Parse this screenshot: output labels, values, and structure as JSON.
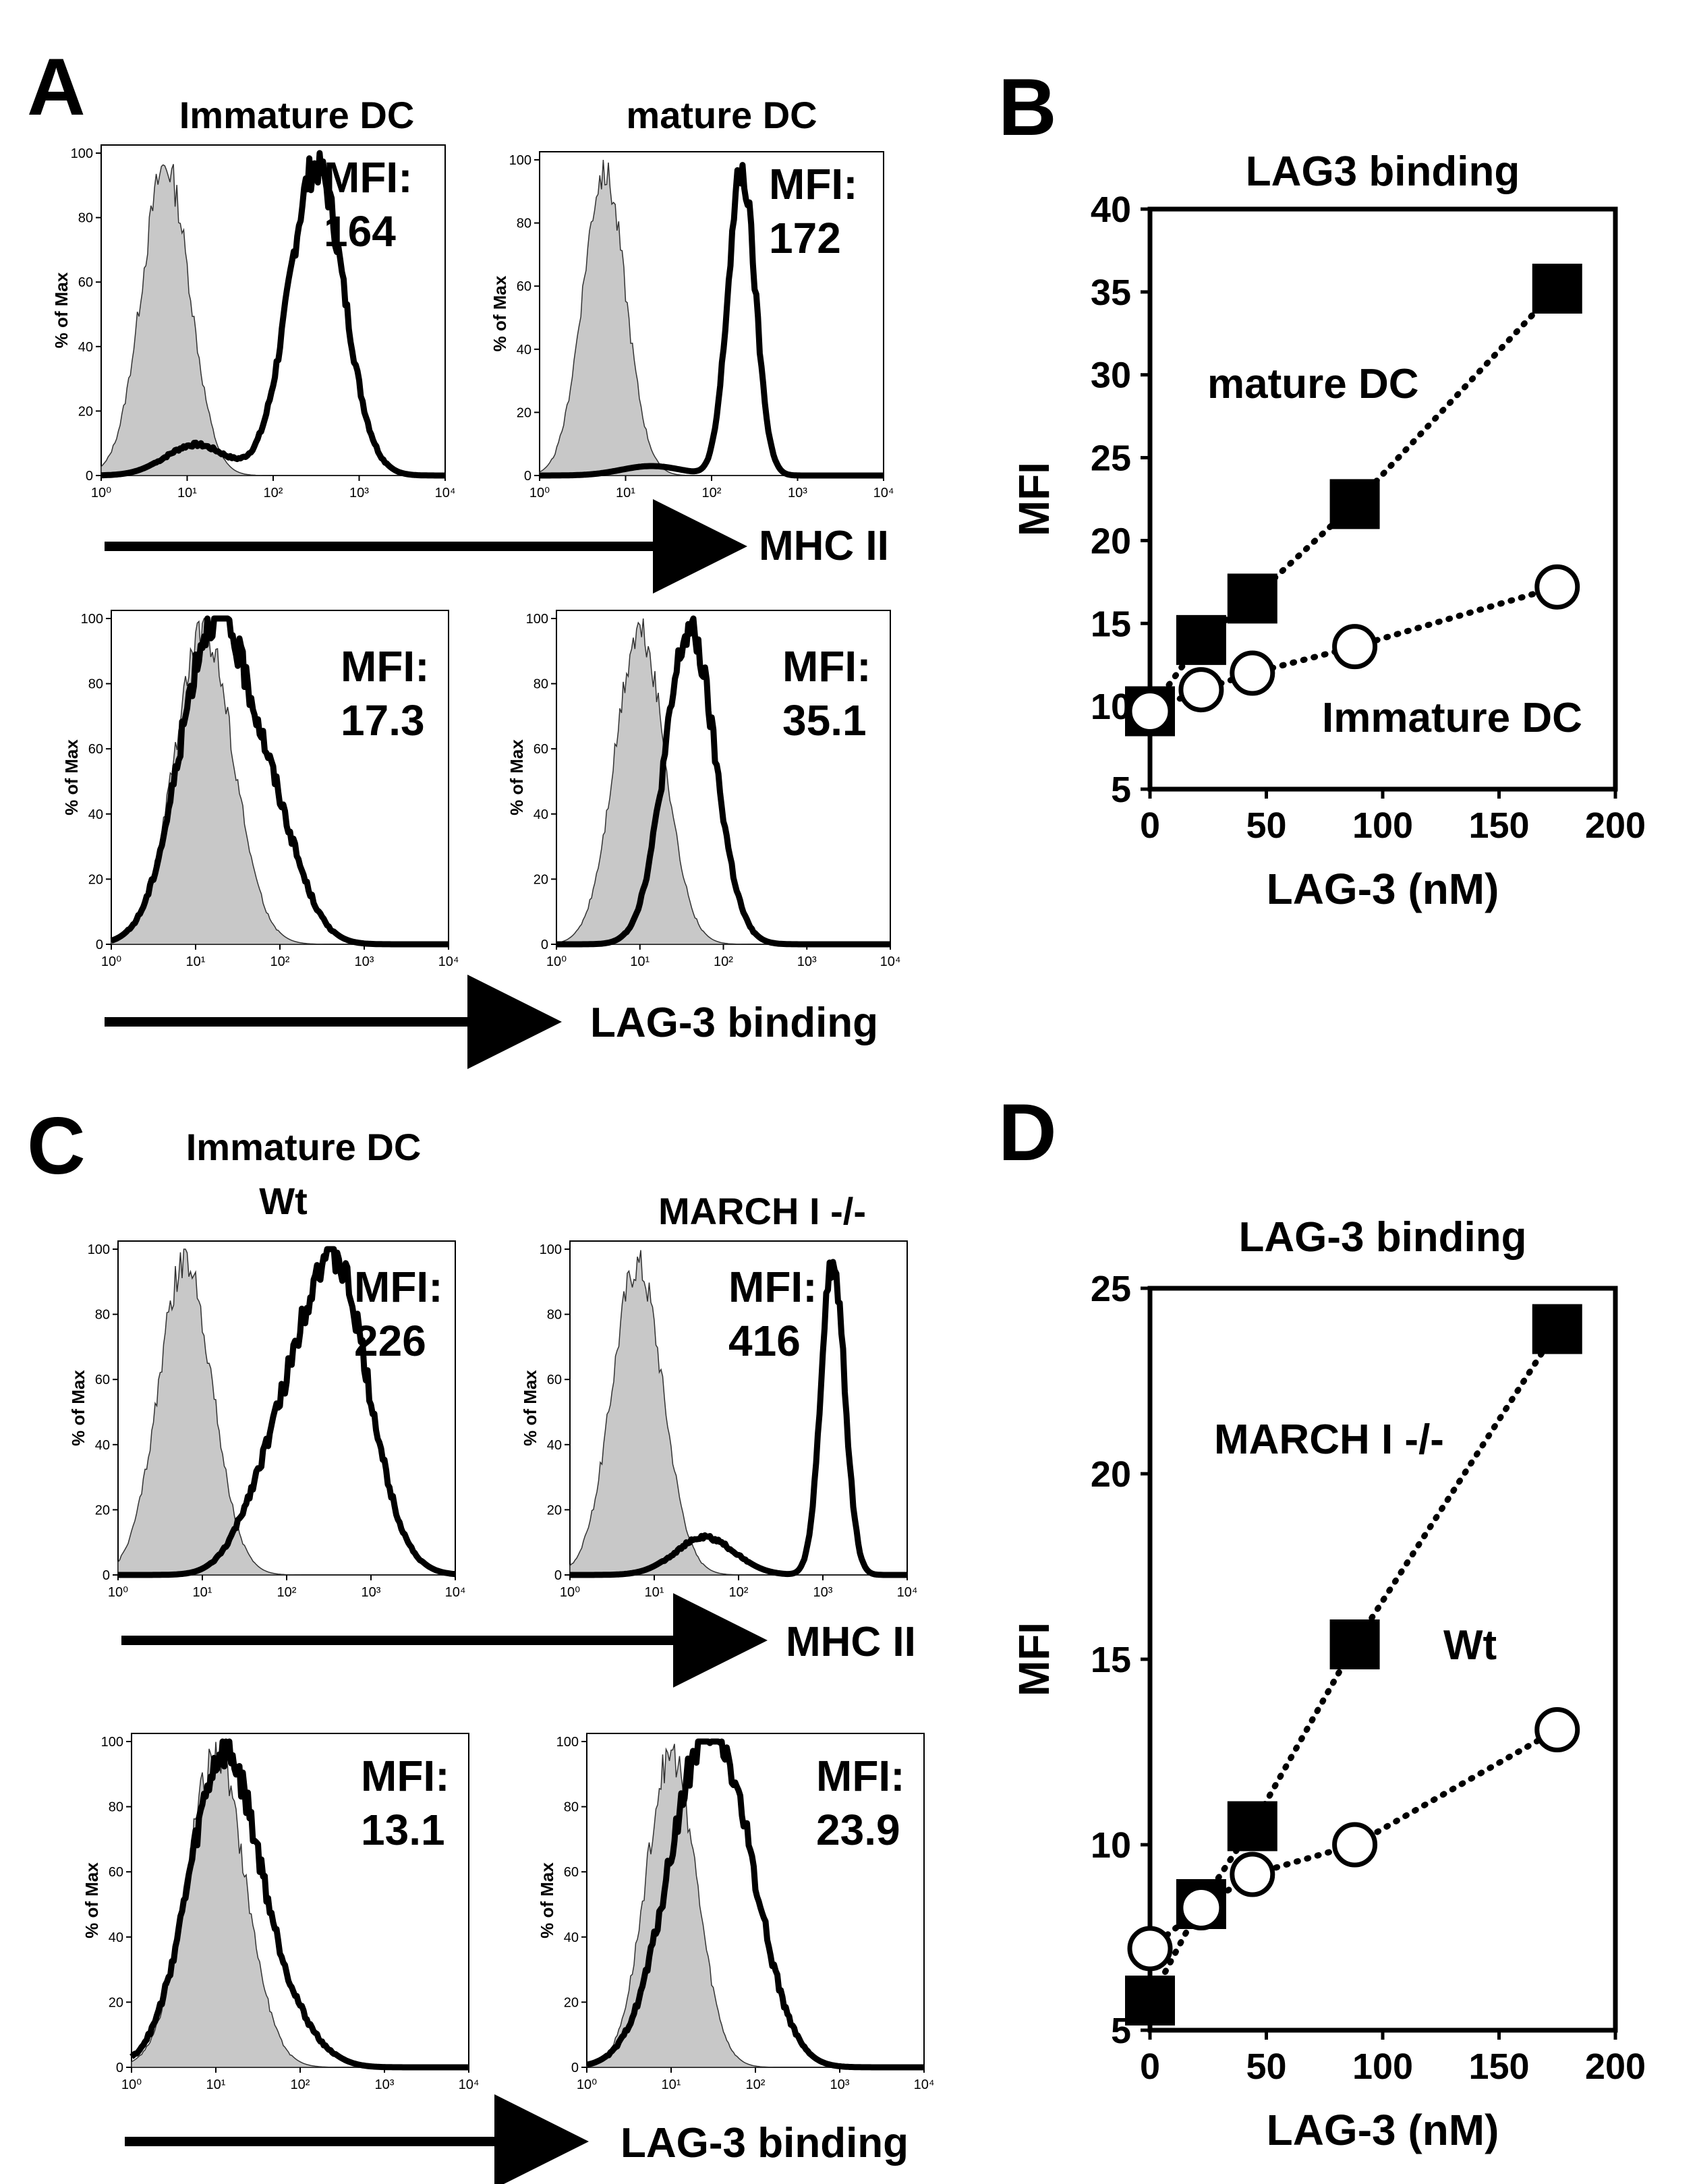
{
  "panels": {
    "A": {
      "letter": "A",
      "col1_title": "Immature DC",
      "col2_title": "mature DC",
      "mhc_axis": "MHC II",
      "lag_axis": "LAG-3 binding"
    },
    "B": {
      "letter": "B"
    },
    "C": {
      "letter": "C",
      "title_line1": "Immature DC",
      "col1_title": "Wt",
      "col2_title": "MARCH I -/-",
      "mhc_axis": "MHC II",
      "lag_axis": "LAG-3 binding"
    },
    "D": {
      "letter": "D"
    }
  },
  "histogram_common": {
    "ylabel": "% of Max",
    "y_ticks": [
      "0",
      "20",
      "40",
      "60",
      "80",
      "100"
    ],
    "x_ticks": [
      "10⁰",
      "10¹",
      "10²",
      "10³",
      "10⁴"
    ],
    "fill_color": "#c8c8c8",
    "line_color": "#000000"
  },
  "histograms": [
    {
      "id": "A-mhc-immature",
      "mfi_label": "MFI:",
      "mfi_value": "164",
      "isotype_peak_log": 0.75,
      "isotype_width": 0.28,
      "stain_peak_log": 2.5,
      "stain_width": 0.32,
      "stain_shoulder_log": 1.1,
      "stain_shoulder_height": 10
    },
    {
      "id": "A-mhc-mature",
      "mfi_label": "MFI:",
      "mfi_value": "172",
      "isotype_peak_log": 0.75,
      "isotype_width": 0.25,
      "stain_peak_log": 2.35,
      "stain_width": 0.16,
      "stain_shoulder_log": 1.3,
      "stain_shoulder_height": 3
    },
    {
      "id": "A-lag-immature",
      "mfi_label": "MFI:",
      "mfi_value": "17.3",
      "isotype_peak_log": 1.1,
      "isotype_width": 0.35,
      "stain_peak_log": 1.2,
      "stain_width": 0.4,
      "stain_shoulder_log": 1.9,
      "stain_shoulder_height": 35
    },
    {
      "id": "A-lag-mature",
      "mfi_label": "MFI:",
      "mfi_value": "35.1",
      "isotype_peak_log": 1.0,
      "isotype_width": 0.3,
      "stain_peak_log": 1.6,
      "stain_width": 0.3,
      "stain_shoulder_log": 1.6,
      "stain_shoulder_height": 0
    },
    {
      "id": "C-mhc-wt",
      "mfi_label": "MFI:",
      "mfi_value": "226",
      "isotype_peak_log": 0.8,
      "isotype_width": 0.32,
      "stain_peak_log": 2.55,
      "stain_width": 0.42,
      "stain_shoulder_log": 1.8,
      "stain_shoulder_height": 25
    },
    {
      "id": "C-mhc-march",
      "mfi_label": "MFI:",
      "mfi_value": "416",
      "isotype_peak_log": 0.8,
      "isotype_width": 0.3,
      "stain_peak_log": 3.12,
      "stain_width": 0.14,
      "stain_shoulder_log": 1.6,
      "stain_shoulder_height": 12
    },
    {
      "id": "C-lag-wt",
      "mfi_label": "MFI:",
      "mfi_value": "13.1",
      "isotype_peak_log": 1.0,
      "isotype_width": 0.35,
      "stain_peak_log": 1.1,
      "stain_width": 0.42,
      "stain_shoulder_log": 1.9,
      "stain_shoulder_height": 10
    },
    {
      "id": "C-lag-march",
      "mfi_label": "MFI:",
      "mfi_value": "23.9",
      "isotype_peak_log": 1.0,
      "isotype_width": 0.3,
      "stain_peak_log": 1.4,
      "stain_width": 0.45,
      "stain_shoulder_log": 1.9,
      "stain_shoulder_height": 20
    }
  ],
  "chart_data": [
    {
      "id": "B",
      "type": "scatter",
      "title": "LAG3 binding",
      "xlabel": "LAG-3 (nM)",
      "ylabel": "MFI",
      "xlim": [
        0,
        200
      ],
      "ylim": [
        5,
        40
      ],
      "x_ticks": [
        0,
        50,
        100,
        150,
        200
      ],
      "y_ticks": [
        5,
        10,
        15,
        20,
        25,
        30,
        35,
        40
      ],
      "series": [
        {
          "name": "mature DC",
          "marker": "filled-square",
          "x": [
            0,
            22,
            44,
            88,
            175
          ],
          "values": [
            9.7,
            14.0,
            16.5,
            22.2,
            35.2
          ]
        },
        {
          "name": "Immature DC",
          "marker": "open-circle",
          "x": [
            0,
            22,
            44,
            88,
            175
          ],
          "values": [
            9.7,
            11.0,
            12.0,
            13.6,
            17.2
          ]
        }
      ]
    },
    {
      "id": "D",
      "type": "scatter",
      "title": "LAG-3 binding",
      "xlabel": "LAG-3 (nM)",
      "ylabel": "MFI",
      "xlim": [
        0,
        200
      ],
      "ylim": [
        5,
        25
      ],
      "x_ticks": [
        0,
        50,
        100,
        150,
        200
      ],
      "y_ticks": [
        5,
        10,
        15,
        20,
        25
      ],
      "series": [
        {
          "name": "MARCH I -/-",
          "marker": "filled-square",
          "x": [
            0,
            22,
            44,
            88,
            175
          ],
          "values": [
            5.8,
            8.4,
            10.5,
            15.4,
            23.9
          ]
        },
        {
          "name": "Wt",
          "marker": "open-circle",
          "x": [
            0,
            22,
            44,
            88,
            175
          ],
          "values": [
            7.2,
            8.3,
            9.2,
            10.0,
            13.1
          ]
        }
      ]
    }
  ]
}
